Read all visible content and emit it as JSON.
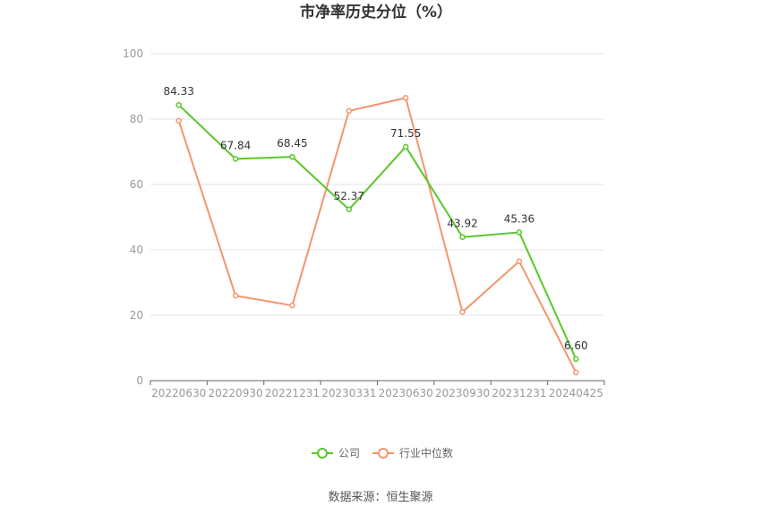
{
  "chart_data": {
    "type": "line",
    "title": "市净率历史分位（%）",
    "xlabel": "",
    "ylabel": "",
    "categories": [
      "20220630",
      "20220930",
      "20221231",
      "20230331",
      "20230630",
      "20230930",
      "20231231",
      "20240425"
    ],
    "ylim": [
      0,
      100
    ],
    "yticks": [
      0,
      20,
      40,
      60,
      80,
      100
    ],
    "grid": true,
    "legend": "bottom",
    "series": [
      {
        "name": "公司",
        "color": "#5ac72c",
        "values": [
          84.33,
          67.84,
          68.45,
          52.37,
          71.55,
          43.92,
          45.36,
          6.6
        ],
        "labels": [
          "84.33",
          "67.84",
          "68.45",
          "52.37",
          "71.55",
          "43.92",
          "45.36",
          "6.60"
        ]
      },
      {
        "name": "行业中位数",
        "color": "#f4956e",
        "values": [
          79.5,
          26.0,
          23.0,
          82.5,
          86.5,
          21.0,
          36.5,
          2.5
        ]
      }
    ]
  },
  "footer": {
    "source": "数据来源：恒生聚源"
  }
}
